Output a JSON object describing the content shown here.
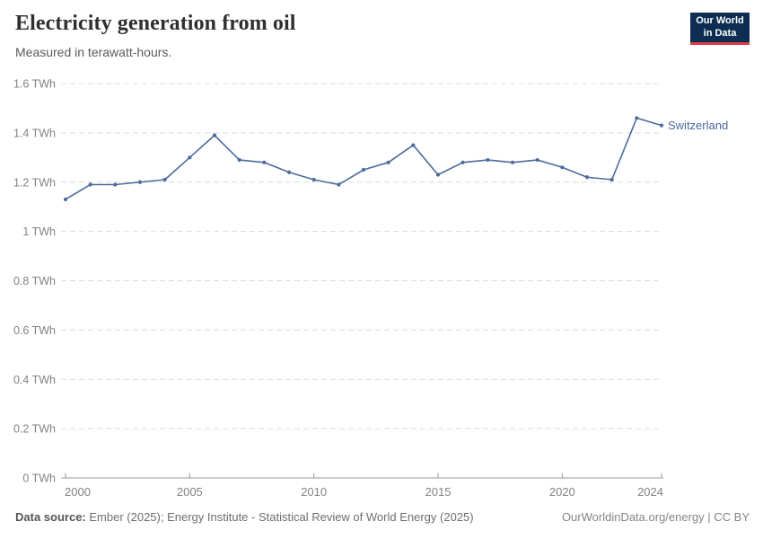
{
  "header": {
    "title": "Electricity generation from oil",
    "subtitle": "Measured in terawatt-hours."
  },
  "logo": {
    "line1": "Our World",
    "line2": "in Data",
    "bg_color": "#0d2e52",
    "bar_color": "#dc3e41"
  },
  "chart_data": {
    "type": "line",
    "title": "Electricity generation from oil",
    "subtitle": "Measured in terawatt-hours.",
    "unit": "TWh",
    "x": [
      2000,
      2001,
      2002,
      2003,
      2004,
      2005,
      2006,
      2007,
      2008,
      2009,
      2010,
      2011,
      2012,
      2013,
      2014,
      2015,
      2016,
      2017,
      2018,
      2019,
      2020,
      2021,
      2022,
      2023,
      2024
    ],
    "series": [
      {
        "name": "Switzerland",
        "color": "#4c6a9c",
        "values": [
          1.13,
          1.19,
          1.19,
          1.2,
          1.21,
          1.3,
          1.39,
          1.29,
          1.28,
          1.24,
          1.21,
          1.19,
          1.25,
          1.28,
          1.35,
          1.23,
          1.28,
          1.29,
          1.28,
          1.29,
          1.26,
          1.22,
          1.21,
          1.46,
          1.43
        ]
      }
    ],
    "ylim": [
      0,
      1.6
    ],
    "yticks": [
      {
        "value": 0,
        "label": "0 TWh"
      },
      {
        "value": 0.2,
        "label": "0.2 TWh"
      },
      {
        "value": 0.4,
        "label": "0.4 TWh"
      },
      {
        "value": 0.6,
        "label": "0.6 TWh"
      },
      {
        "value": 0.8,
        "label": "0.8 TWh"
      },
      {
        "value": 1,
        "label": "1 TWh"
      },
      {
        "value": 1.2,
        "label": "1.2 TWh"
      },
      {
        "value": 1.4,
        "label": "1.4 TWh"
      },
      {
        "value": 1.6,
        "label": "1.6 TWh"
      }
    ],
    "xticks": [
      {
        "year": 2000,
        "label": "2000",
        "align": "start"
      },
      {
        "year": 2005,
        "label": "2005",
        "align": "middle"
      },
      {
        "year": 2010,
        "label": "2010",
        "align": "middle"
      },
      {
        "year": 2015,
        "label": "2015",
        "align": "middle"
      },
      {
        "year": 2020,
        "label": "2020",
        "align": "middle"
      },
      {
        "year": 2024,
        "label": "2024",
        "align": "end"
      }
    ],
    "grid": "horizontal-dashed",
    "legend_position": "end-of-line-label"
  },
  "colors": {
    "line": "#4c6a9c",
    "entity_label": "#4c6a9c",
    "grid": "#dcdcdc",
    "axis": "#9a9a9a",
    "tick_text": "#828282"
  },
  "footer": {
    "source_label": "Data source:",
    "source_text": "Ember (2025); Energy Institute - Statistical Review of World Energy (2025)",
    "right_text": "OurWorldinData.org/energy | CC BY"
  }
}
